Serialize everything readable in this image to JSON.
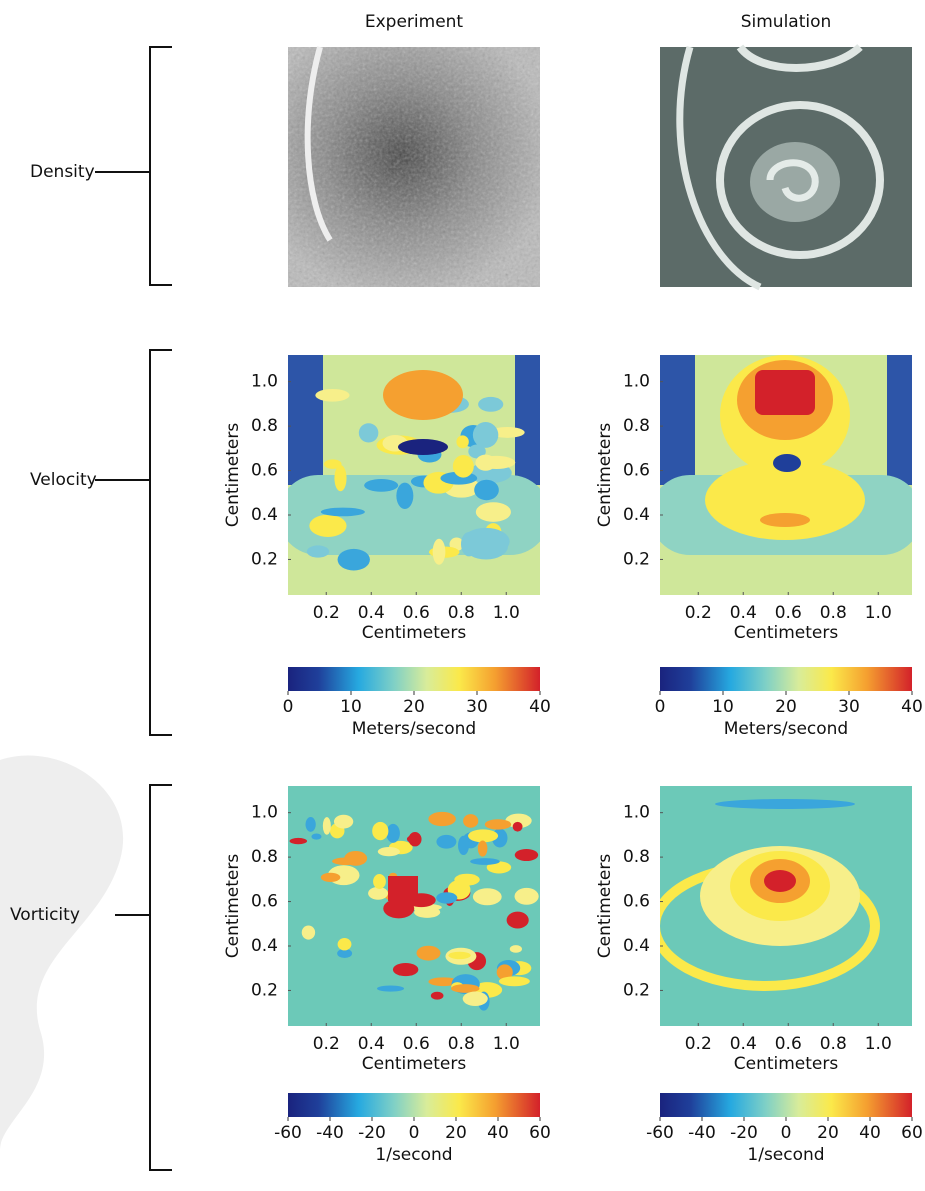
{
  "columns": [
    "Experiment",
    "Simulation"
  ],
  "rows": [
    {
      "label": "Density"
    },
    {
      "label": "Velocity",
      "panels": [
        {
          "x_label": "Centimeters",
          "y_label": "Centimeters",
          "xlim": [
            0.03,
            1.15
          ],
          "ylim": [
            0.04,
            1.12
          ],
          "xticks": [
            0.2,
            0.4,
            0.6,
            0.8,
            {
              "value": 1,
              "label": "1.0"
            }
          ],
          "yticks": [
            0.2,
            0.4,
            0.6,
            0.8,
            {
              "value": 1,
              "label": "1.0"
            }
          ],
          "colorbar": {
            "lim": [
              0,
              40
            ],
            "ticks": [
              0,
              10,
              20,
              30,
              40
            ],
            "label": "Meters/second"
          }
        },
        {
          "x_label": "Centimeters",
          "y_label": "Centimeters",
          "xlim": [
            0.03,
            1.15
          ],
          "ylim": [
            0.04,
            1.12
          ],
          "xticks": [
            0.2,
            0.4,
            0.6,
            0.8,
            {
              "value": 1,
              "label": "1.0"
            }
          ],
          "yticks": [
            0.2,
            0.4,
            0.6,
            0.8,
            {
              "value": 1,
              "label": "1.0"
            }
          ],
          "colorbar": {
            "lim": [
              0,
              40
            ],
            "ticks": [
              0,
              10,
              20,
              30,
              40
            ],
            "label": "Meters/second"
          }
        }
      ]
    },
    {
      "label": "Vorticity",
      "panels": [
        {
          "x_label": "Centimeters",
          "y_label": "Centimeters",
          "xlim": [
            0.03,
            1.15
          ],
          "ylim": [
            0.04,
            1.12
          ],
          "xticks": [
            0.2,
            0.4,
            0.6,
            0.8,
            {
              "value": 1,
              "label": "1.0"
            }
          ],
          "yticks": [
            0.2,
            0.4,
            0.6,
            0.8,
            {
              "value": 1,
              "label": "1.0"
            }
          ],
          "colorbar": {
            "lim": [
              -60,
              60
            ],
            "ticks": [
              -60,
              -40,
              -20,
              0,
              20,
              40,
              60
            ],
            "label": "1/second"
          }
        },
        {
          "x_label": "Centimeters",
          "y_label": "Centimeters",
          "xlim": [
            0.03,
            1.15
          ],
          "ylim": [
            0.04,
            1.12
          ],
          "xticks": [
            0.2,
            0.4,
            0.6,
            0.8,
            {
              "value": 1,
              "label": "1.0"
            }
          ],
          "yticks": [
            0.2,
            0.4,
            0.6,
            0.8,
            {
              "value": 1,
              "label": "1.0"
            }
          ],
          "colorbar": {
            "lim": [
              -60,
              60
            ],
            "ticks": [
              -60,
              -40,
              -20,
              0,
              20,
              40,
              60
            ],
            "label": "1/second"
          }
        }
      ]
    }
  ]
}
